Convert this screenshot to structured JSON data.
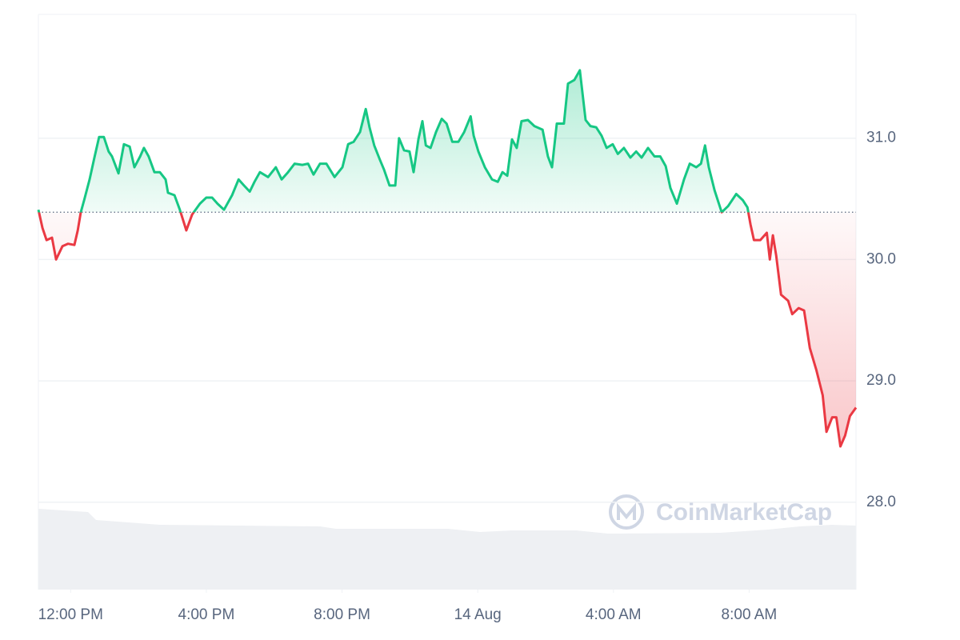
{
  "chart_data": {
    "type": "line",
    "watermark": "CoinMarketCap",
    "baseline": 30.39,
    "up_color": "#16c784",
    "down_color": "#ea3943",
    "x": [
      11.05,
      11.17,
      11.29,
      11.45,
      11.57,
      11.76,
      11.92,
      12.11,
      12.21,
      12.3,
      12.4,
      12.56,
      12.7,
      12.84,
      12.98,
      13.12,
      13.22,
      13.41,
      13.57,
      13.74,
      13.88,
      14.05,
      14.16,
      14.3,
      14.47,
      14.63,
      14.8,
      14.87,
      15.06,
      15.22,
      15.41,
      15.58,
      15.81,
      16.0,
      16.17,
      16.33,
      16.52,
      16.76,
      16.95,
      17.11,
      17.28,
      17.42,
      17.58,
      17.82,
      18.05,
      18.22,
      18.41,
      18.6,
      18.83,
      19.0,
      19.16,
      19.35,
      19.54,
      19.78,
      20.01,
      20.18,
      20.34,
      20.53,
      20.7,
      20.81,
      20.95,
      21.12,
      21.24,
      21.4,
      21.57,
      21.68,
      21.83,
      21.99,
      22.11,
      22.25,
      22.37,
      22.47,
      22.61,
      22.77,
      22.94,
      23.08,
      23.25,
      23.43,
      23.6,
      23.79,
      23.88,
      24.02,
      24.21,
      24.42,
      24.59,
      24.73,
      24.87,
      25.01,
      25.15,
      25.29,
      25.48,
      25.67,
      25.91,
      26.07,
      26.19,
      26.33,
      26.54,
      26.66,
      26.85,
      27.01,
      27.18,
      27.32,
      27.49,
      27.65,
      27.8,
      27.98,
      28.13,
      28.31,
      28.5,
      28.67,
      28.83,
      29.02,
      29.21,
      29.38,
      29.54,
      29.68,
      29.87,
      30.08,
      30.25,
      30.44,
      30.58,
      30.7,
      30.81,
      30.98,
      31.19,
      31.38,
      31.62,
      31.81,
      31.95,
      32.04,
      32.14,
      32.33,
      32.52,
      32.61,
      32.7,
      32.8,
      32.94,
      33.15,
      33.27,
      33.46,
      33.62,
      33.79,
      33.98,
      34.17,
      34.28,
      34.45,
      34.57,
      34.69,
      34.83,
      34.97,
      35.15
    ],
    "values": [
      30.41,
      30.26,
      30.16,
      30.18,
      30.0,
      30.11,
      30.13,
      30.12,
      30.24,
      30.39,
      30.49,
      30.66,
      30.84,
      31.01,
      31.01,
      30.89,
      30.85,
      30.71,
      30.95,
      30.93,
      30.76,
      30.85,
      30.92,
      30.85,
      30.72,
      30.72,
      30.66,
      30.55,
      30.53,
      30.41,
      30.24,
      30.37,
      30.46,
      30.51,
      30.51,
      30.46,
      30.41,
      30.53,
      30.66,
      30.61,
      30.56,
      30.64,
      30.72,
      30.68,
      30.76,
      30.66,
      30.72,
      30.79,
      30.78,
      30.79,
      30.7,
      30.79,
      30.79,
      30.68,
      30.76,
      30.95,
      30.97,
      31.05,
      31.24,
      31.09,
      30.94,
      30.82,
      30.74,
      30.61,
      30.61,
      31.0,
      30.9,
      30.89,
      30.72,
      30.99,
      31.14,
      30.94,
      30.92,
      31.05,
      31.16,
      31.12,
      30.97,
      30.97,
      31.05,
      31.18,
      31.02,
      30.89,
      30.76,
      30.66,
      30.64,
      30.72,
      30.69,
      30.99,
      30.92,
      31.14,
      31.15,
      31.1,
      31.07,
      30.85,
      30.76,
      31.12,
      31.12,
      31.45,
      31.48,
      31.56,
      31.15,
      31.1,
      31.09,
      31.02,
      30.92,
      30.95,
      30.87,
      30.92,
      30.84,
      30.89,
      30.84,
      30.92,
      30.85,
      30.85,
      30.77,
      30.59,
      30.46,
      30.66,
      30.79,
      30.76,
      30.79,
      30.94,
      30.76,
      30.57,
      30.39,
      30.44,
      30.54,
      30.49,
      30.43,
      30.29,
      30.16,
      30.16,
      30.22,
      30.0,
      30.2,
      30.03,
      29.71,
      29.66,
      29.55,
      29.6,
      29.58,
      29.27,
      29.09,
      28.88,
      28.58,
      28.7,
      28.7,
      28.46,
      28.55,
      28.71,
      28.78
    ],
    "xlim": [
      11.05,
      35.15
    ],
    "xticks": [
      {
        "value": 12,
        "label": "12:00 PM"
      },
      {
        "value": 16,
        "label": "4:00 PM"
      },
      {
        "value": 20,
        "label": "8:00 PM"
      },
      {
        "value": 24,
        "label": "14 Aug"
      },
      {
        "value": 28,
        "label": "4:00 AM"
      },
      {
        "value": 32,
        "label": "8:00 AM"
      }
    ],
    "ylim": [
      27.28,
      32.02
    ],
    "yticks": [
      {
        "value": 28,
        "label": "28.0"
      },
      {
        "value": 29,
        "label": "29.0"
      },
      {
        "value": 30,
        "label": "30.0"
      },
      {
        "value": 31,
        "label": "31.0"
      }
    ],
    "grid": true
  }
}
